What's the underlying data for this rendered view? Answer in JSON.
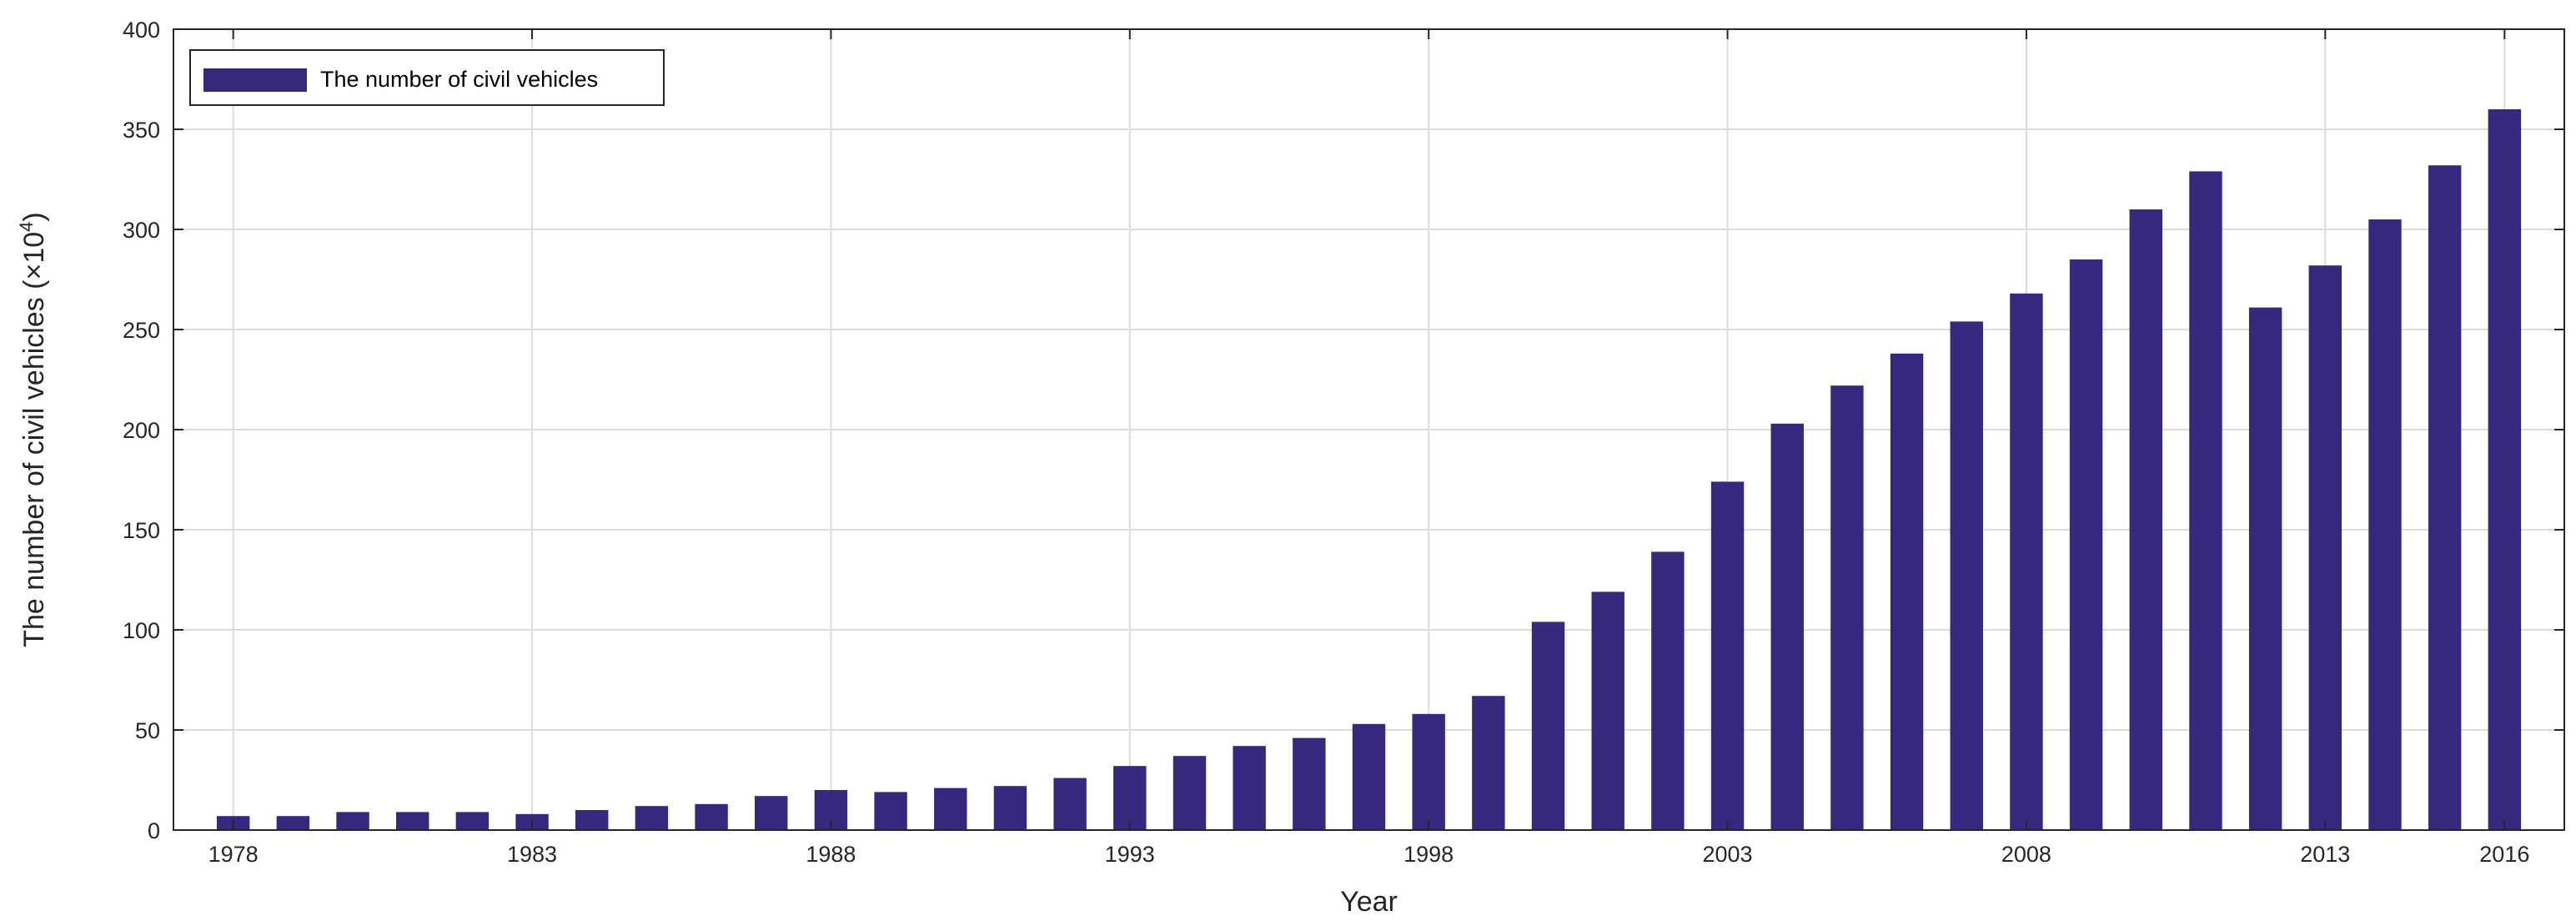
{
  "chart_data": {
    "type": "bar",
    "x": [
      1978,
      1979,
      1980,
      1981,
      1982,
      1983,
      1984,
      1985,
      1986,
      1987,
      1988,
      1989,
      1990,
      1991,
      1992,
      1993,
      1994,
      1995,
      1996,
      1997,
      1998,
      1999,
      2000,
      2001,
      2002,
      2003,
      2004,
      2005,
      2006,
      2007,
      2008,
      2009,
      2010,
      2011,
      2012,
      2013,
      2014,
      2015,
      2016
    ],
    "values": [
      7,
      7,
      9,
      9,
      9,
      8,
      10,
      12,
      13,
      17,
      20,
      19,
      21,
      22,
      26,
      32,
      37,
      42,
      46,
      53,
      58,
      67,
      104,
      119,
      139,
      174,
      203,
      222,
      238,
      254,
      268,
      285,
      310,
      329,
      261,
      282,
      305,
      332,
      360
    ],
    "xlabel": "Year",
    "ylabel_prefix": "The number of civil vehicles (×10",
    "ylabel_exp": "4",
    "ylabel_suffix": ")",
    "ylim": [
      0,
      400
    ],
    "xlim": [
      1977,
      2017
    ],
    "xticks": [
      1978,
      1983,
      1988,
      1993,
      1998,
      2003,
      2008,
      2013,
      2016
    ],
    "yticks": [
      0,
      50,
      100,
      150,
      200,
      250,
      300,
      350,
      400
    ],
    "legend": {
      "label": "The number of civil vehicles",
      "location": "top-left"
    },
    "grid": true,
    "bar_color": "#35287F"
  }
}
